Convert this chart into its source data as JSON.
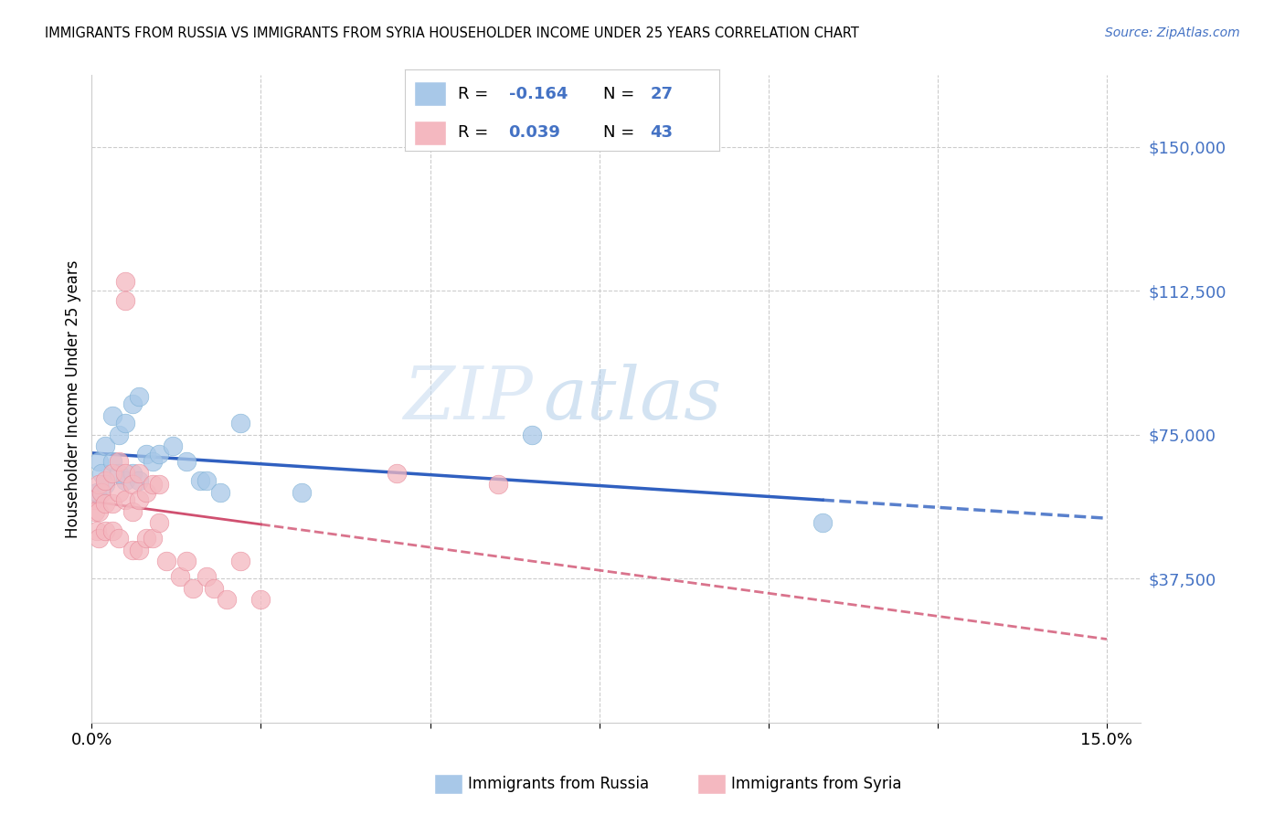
{
  "title": "IMMIGRANTS FROM RUSSIA VS IMMIGRANTS FROM SYRIA HOUSEHOLDER INCOME UNDER 25 YEARS CORRELATION CHART",
  "source": "Source: ZipAtlas.com",
  "ylabel": "Householder Income Under 25 years",
  "xlim": [
    0,
    0.155
  ],
  "ylim": [
    0,
    168750
  ],
  "yticks": [
    0,
    37500,
    75000,
    112500,
    150000
  ],
  "ytick_labels": [
    "",
    "$37,500",
    "$75,000",
    "$112,500",
    "$150,000"
  ],
  "xticks": [
    0.0,
    0.025,
    0.05,
    0.075,
    0.1,
    0.125,
    0.15
  ],
  "xtick_labels_show": [
    "0.0%",
    "15.0%"
  ],
  "russia_color": "#a8c8e8",
  "russia_edge_color": "#7bafd4",
  "syria_color": "#f4b8c0",
  "syria_edge_color": "#e88898",
  "russia_R": -0.164,
  "russia_N": 27,
  "syria_R": 0.039,
  "syria_N": 43,
  "russia_x": [
    0.0008,
    0.001,
    0.0015,
    0.002,
    0.002,
    0.003,
    0.003,
    0.004,
    0.004,
    0.005,
    0.005,
    0.006,
    0.006,
    0.007,
    0.007,
    0.008,
    0.009,
    0.01,
    0.012,
    0.014,
    0.016,
    0.017,
    0.019,
    0.022,
    0.031,
    0.065,
    0.108
  ],
  "russia_y": [
    60000,
    68000,
    65000,
    72000,
    62000,
    80000,
    68000,
    75000,
    65000,
    78000,
    63000,
    83000,
    65000,
    85000,
    63000,
    70000,
    68000,
    70000,
    72000,
    68000,
    63000,
    63000,
    60000,
    78000,
    60000,
    75000,
    52000
  ],
  "syria_x": [
    0.0003,
    0.0005,
    0.0007,
    0.001,
    0.001,
    0.001,
    0.0015,
    0.002,
    0.002,
    0.002,
    0.003,
    0.003,
    0.003,
    0.004,
    0.004,
    0.004,
    0.005,
    0.005,
    0.005,
    0.005,
    0.006,
    0.006,
    0.006,
    0.007,
    0.007,
    0.007,
    0.008,
    0.008,
    0.009,
    0.009,
    0.01,
    0.01,
    0.011,
    0.013,
    0.014,
    0.015,
    0.017,
    0.018,
    0.02,
    0.022,
    0.025,
    0.045,
    0.06
  ],
  "syria_y": [
    58000,
    55000,
    50000,
    62000,
    55000,
    48000,
    60000,
    63000,
    57000,
    50000,
    65000,
    57000,
    50000,
    68000,
    60000,
    48000,
    115000,
    110000,
    65000,
    58000,
    62000,
    55000,
    45000,
    65000,
    58000,
    45000,
    60000,
    48000,
    62000,
    48000,
    62000,
    52000,
    42000,
    38000,
    42000,
    35000,
    38000,
    35000,
    32000,
    42000,
    32000,
    65000,
    62000
  ],
  "background_color": "#ffffff",
  "grid_color": "#cccccc",
  "trend_line_blue": "#3060c0",
  "trend_line_pink": "#d05070",
  "watermark_zip": "ZIP",
  "watermark_atlas": "atlas"
}
